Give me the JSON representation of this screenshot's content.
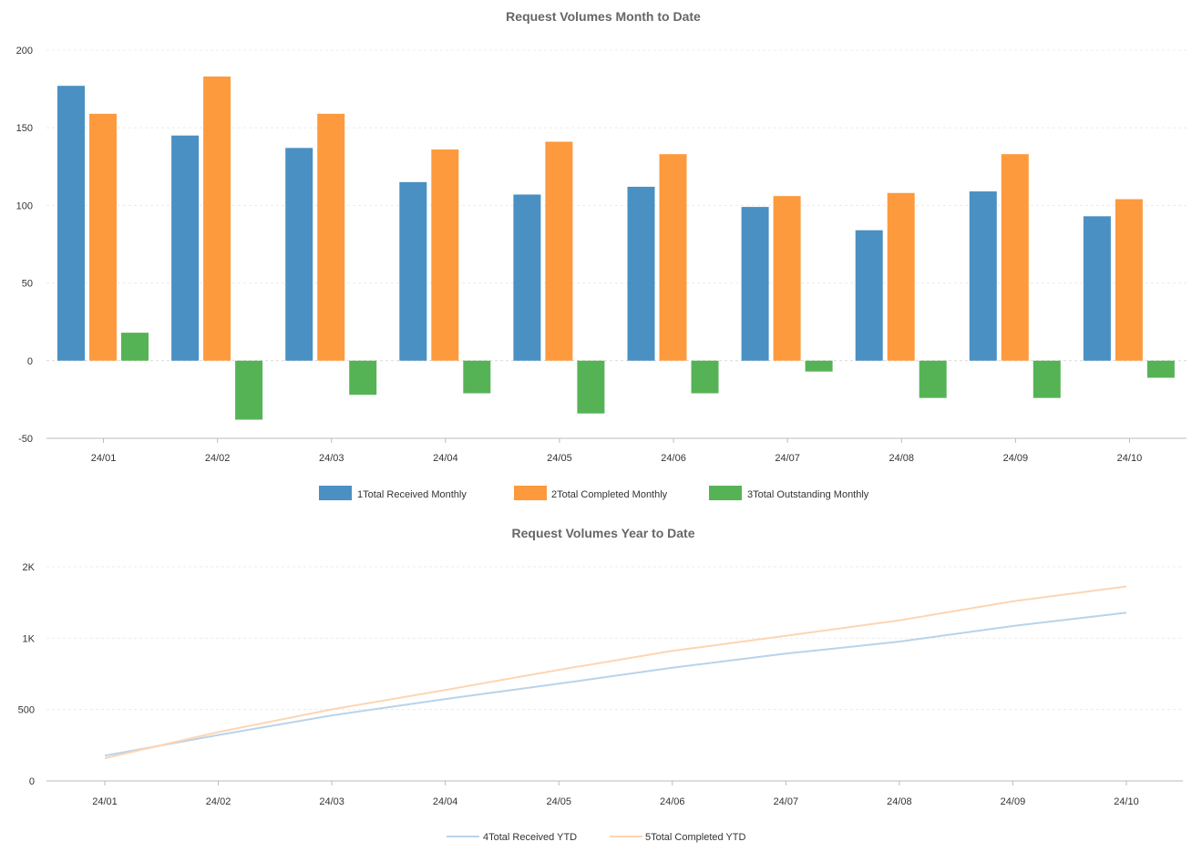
{
  "chart_data": [
    {
      "type": "bar",
      "title": "Request Volumes Month to Date",
      "xlabel": "",
      "ylabel": "",
      "categories": [
        "24/01",
        "24/02",
        "24/03",
        "24/04",
        "24/05",
        "24/06",
        "24/07",
        "24/08",
        "24/09",
        "24/10"
      ],
      "ylim": [
        -50,
        200
      ],
      "yticks": [
        -50,
        0,
        50,
        100,
        150,
        200
      ],
      "ytick_labels": [
        "-50",
        "0",
        "50",
        "100",
        "150",
        "200"
      ],
      "grid": true,
      "legend_position": "bottom-center",
      "series": [
        {
          "name": "1Total Received Monthly",
          "color": "#4a90c2",
          "values": [
            177,
            145,
            137,
            115,
            107,
            112,
            99,
            84,
            109,
            93
          ]
        },
        {
          "name": "2Total Completed Monthly",
          "color": "#fd9a3d",
          "values": [
            159,
            183,
            159,
            136,
            141,
            133,
            106,
            108,
            133,
            104
          ]
        },
        {
          "name": "3Total Outstanding Monthly",
          "color": "#56b355",
          "values": [
            18,
            -38,
            -22,
            -21,
            -34,
            -21,
            -7,
            -24,
            -24,
            -11
          ]
        }
      ]
    },
    {
      "type": "line",
      "title": "Request Volumes Year to Date",
      "xlabel": "",
      "ylabel": "",
      "categories": [
        "24/01",
        "24/02",
        "24/03",
        "24/04",
        "24/05",
        "24/06",
        "24/07",
        "24/08",
        "24/09",
        "24/10"
      ],
      "ylim": [
        0,
        1500
      ],
      "yticks": [
        0,
        500,
        1000,
        1500
      ],
      "ytick_labels": [
        "0",
        "500",
        "1K",
        "2K"
      ],
      "grid": true,
      "legend_position": "bottom-center",
      "series": [
        {
          "name": "4Total Received YTD",
          "color": "#b9d3ea",
          "values": [
            177,
            322,
            459,
            574,
            681,
            793,
            892,
            976,
            1085,
            1178
          ]
        },
        {
          "name": "5Total Completed YTD",
          "color": "#fdd5b3",
          "values": [
            159,
            342,
            501,
            637,
            778,
            911,
            1017,
            1125,
            1258,
            1362
          ]
        }
      ]
    }
  ]
}
